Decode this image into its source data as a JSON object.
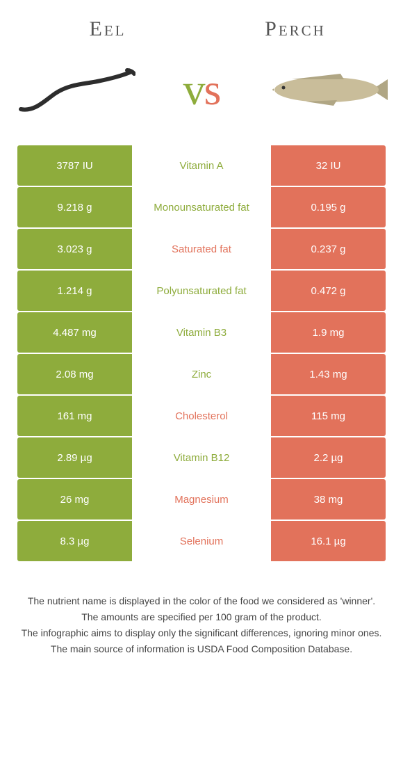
{
  "left": {
    "name": "Eel"
  },
  "right": {
    "name": "Perch"
  },
  "colors": {
    "left": "#8eac3c",
    "right": "#e2725b",
    "bg": "#ffffff"
  },
  "rows": [
    {
      "nutrient": "Vitamin A",
      "left": "3787 IU",
      "right": "32 IU",
      "winner": "left"
    },
    {
      "nutrient": "Monounsaturated fat",
      "left": "9.218 g",
      "right": "0.195 g",
      "winner": "left"
    },
    {
      "nutrient": "Saturated fat",
      "left": "3.023 g",
      "right": "0.237 g",
      "winner": "right"
    },
    {
      "nutrient": "Polyunsaturated fat",
      "left": "1.214 g",
      "right": "0.472 g",
      "winner": "left"
    },
    {
      "nutrient": "Vitamin B3",
      "left": "4.487 mg",
      "right": "1.9 mg",
      "winner": "left"
    },
    {
      "nutrient": "Zinc",
      "left": "2.08 mg",
      "right": "1.43 mg",
      "winner": "left"
    },
    {
      "nutrient": "Cholesterol",
      "left": "161 mg",
      "right": "115 mg",
      "winner": "right"
    },
    {
      "nutrient": "Vitamin B12",
      "left": "2.89 µg",
      "right": "2.2 µg",
      "winner": "left"
    },
    {
      "nutrient": "Magnesium",
      "left": "26 mg",
      "right": "38 mg",
      "winner": "right"
    },
    {
      "nutrient": "Selenium",
      "left": "8.3 µg",
      "right": "16.1 µg",
      "winner": "right"
    }
  ],
  "footer": [
    "The nutrient name is displayed in the color of the food we considered as 'winner'.",
    "The amounts are specified per 100 gram of the product.",
    "The infographic aims to display only the significant differences, ignoring minor ones.",
    "The main source of information is USDA Food Composition Database."
  ]
}
